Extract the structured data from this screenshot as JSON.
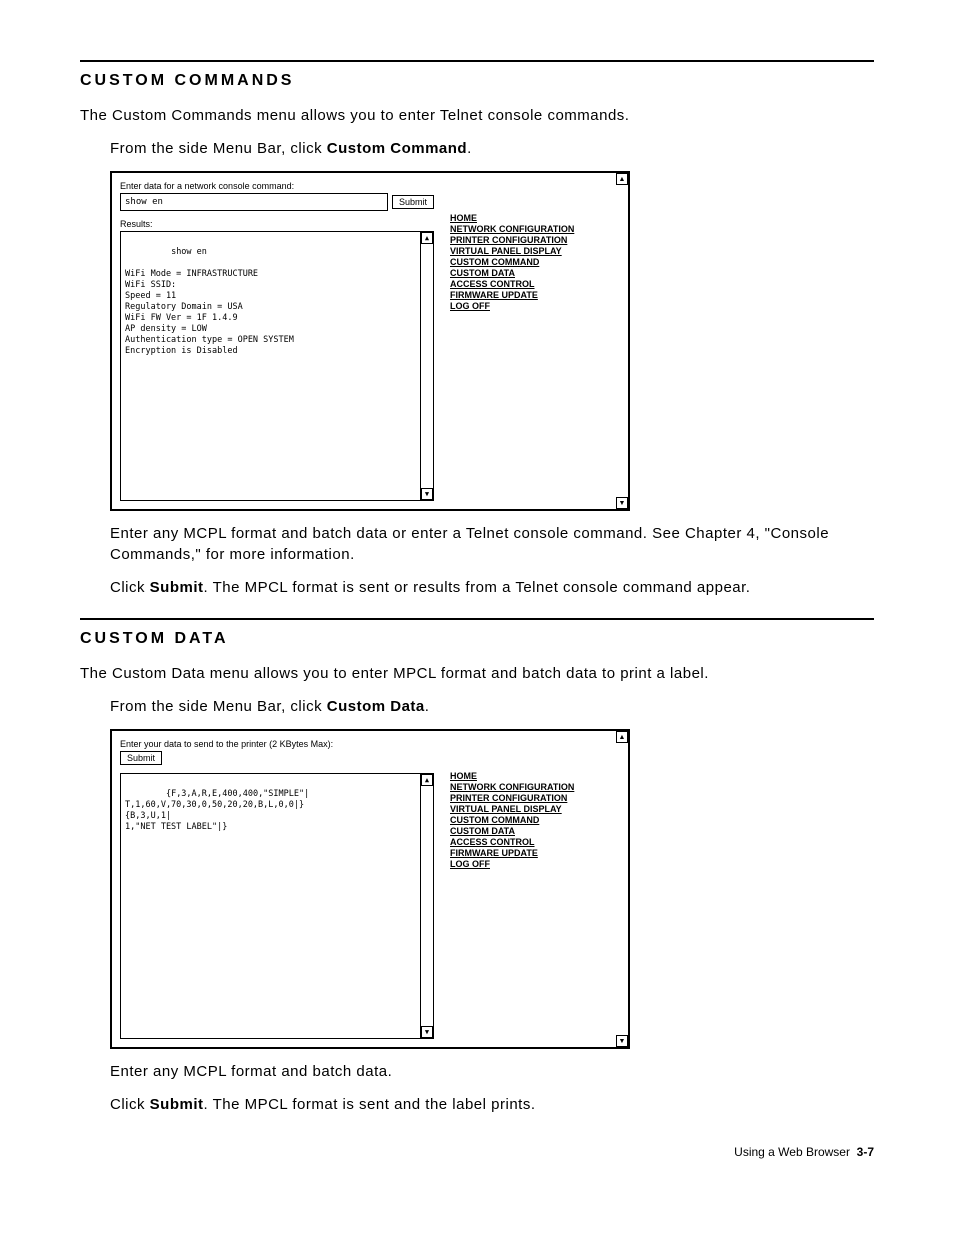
{
  "section1": {
    "heading": "CUSTOM COMMANDS",
    "intro": "The Custom Commands menu allows you to enter Telnet console commands.",
    "step1_prefix": "From the side Menu Bar, click ",
    "step1_link": "Custom Command",
    "step1_suffix": ".",
    "step2": "Enter any MCPL format and batch data or enter a Telnet console command.  See Chapter 4, \"Console Commands,\" for more information.",
    "step3_prefix": "Click ",
    "step3_bold": "Submit",
    "step3_suffix": ".  The MPCL format is sent or results from a Telnet console command appear."
  },
  "section2": {
    "heading": "CUSTOM DATA",
    "intro": "The Custom Data menu allows you to enter MPCL format and batch data to print a label.",
    "step1_prefix": "From the side Menu Bar, click ",
    "step1_link": "Custom Data",
    "step1_suffix": ".",
    "step2": "Enter any MCPL format and batch data.",
    "step3_prefix": "Click ",
    "step3_bold": "Submit",
    "step3_suffix": ".  The MPCL format is sent and the label prints."
  },
  "screenshot1": {
    "prompt": "Enter data for a network console command:",
    "input_value": "show en",
    "submit_label": "Submit",
    "results_label": "Results:",
    "results_text": " show en\n\nWiFi Mode = INFRASTRUCTURE\nWiFi SSID:\nSpeed = 11\nRegulatory Domain = USA\nWiFi FW Ver = 1F 1.4.9\nAP density = LOW\nAuthentication type = OPEN SYSTEM\nEncryption is Disabled"
  },
  "screenshot2": {
    "prompt": "Enter your data to send to the printer (2 KBytes Max):",
    "submit_label": "Submit",
    "results_text": "{F,3,A,R,E,400,400,\"SIMPLE\"|\nT,1,60,V,70,30,0,50,20,20,B,L,0,0|}\n{B,3,U,1|\n1,\"NET TEST LABEL\"|}"
  },
  "nav": {
    "items": [
      "HOME",
      "NETWORK CONFIGURATION",
      "PRINTER CONFIGURATION",
      "VIRTUAL PANEL DISPLAY",
      "CUSTOM COMMAND",
      "CUSTOM DATA",
      "ACCESS CONTROL",
      "FIRMWARE UPDATE",
      "LOG OFF"
    ]
  },
  "footer": {
    "text": "Using a Web Browser",
    "page": "3-7"
  }
}
